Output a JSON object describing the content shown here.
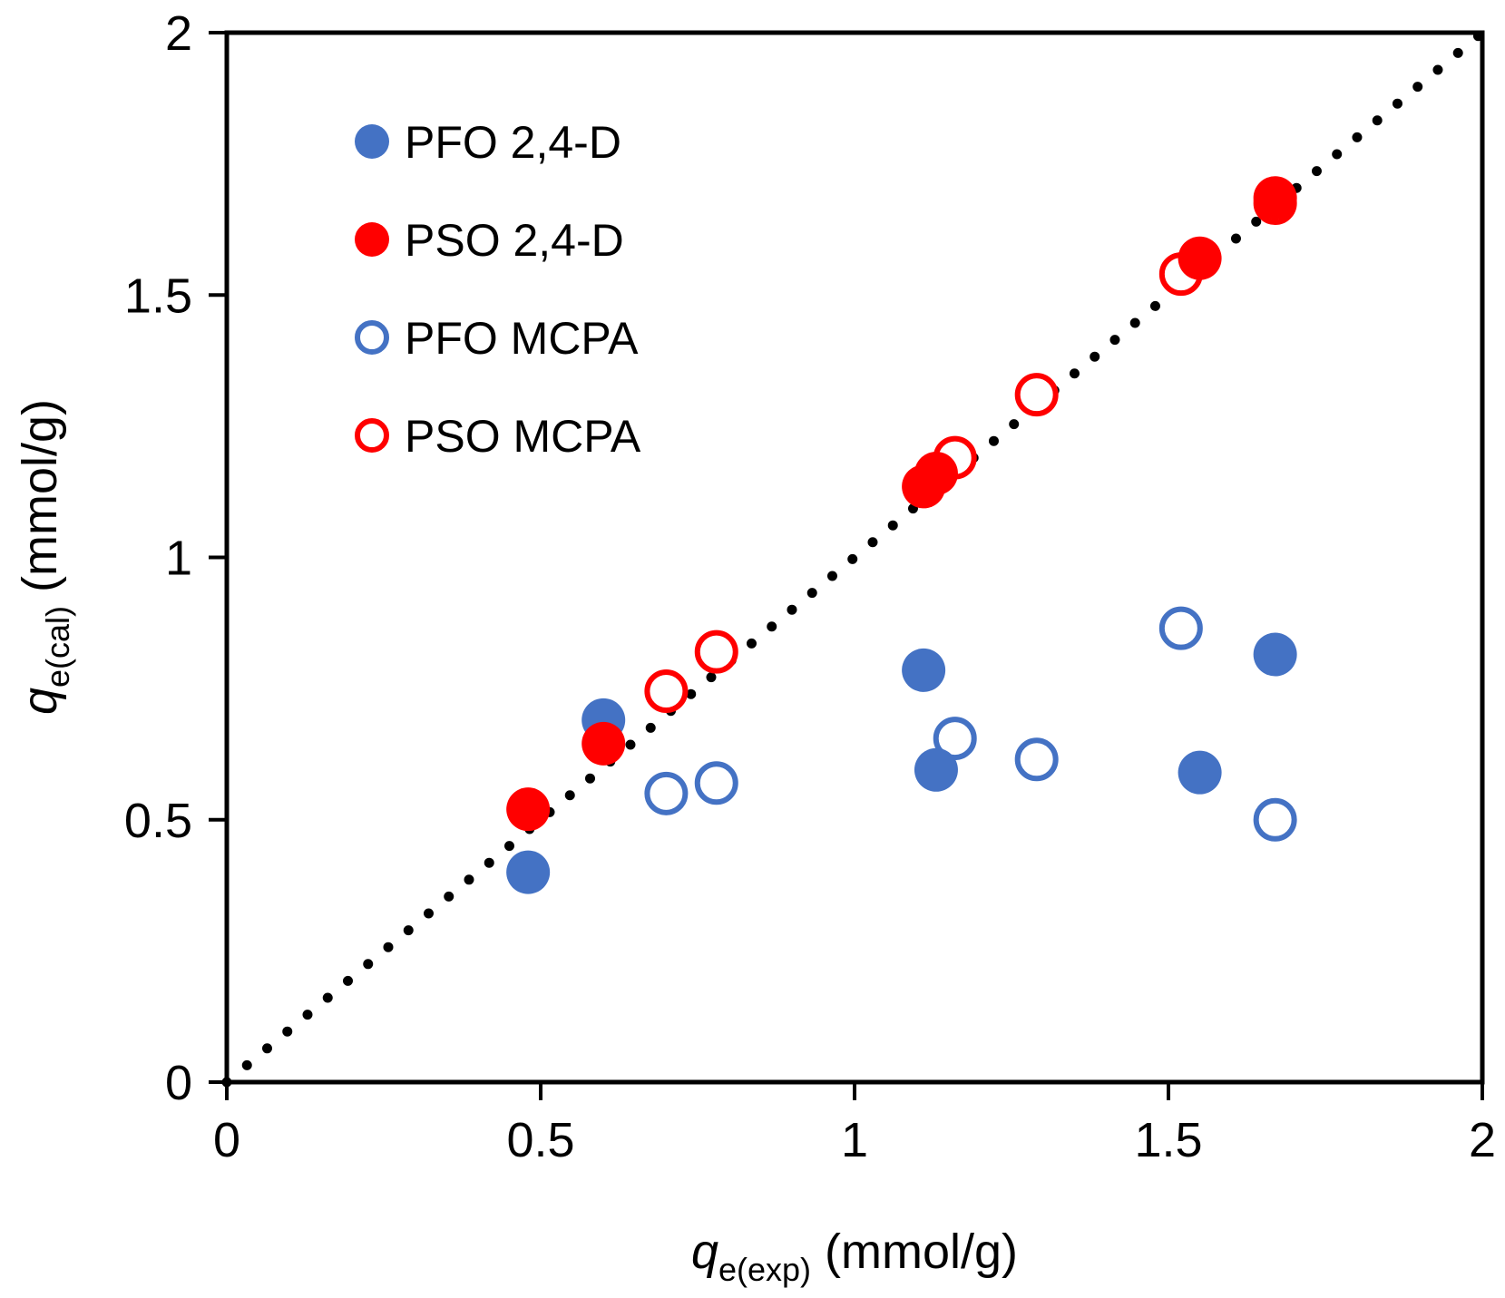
{
  "chart_data": {
    "type": "scatter",
    "xlabel": {
      "main": "q",
      "sub": "e(exp)",
      "unit": " (mmol/g)"
    },
    "ylabel": {
      "main": "q",
      "sub": "e(cal)",
      "unit": " (mmol/g)"
    },
    "xlim": [
      0,
      2
    ],
    "ylim": [
      0,
      2
    ],
    "xticks": [
      0,
      0.5,
      1,
      1.5,
      2
    ],
    "yticks": [
      0,
      0.5,
      1,
      1.5,
      2
    ],
    "xtick_labels": [
      "0",
      "0.5",
      "1",
      "1.5",
      "2"
    ],
    "ytick_labels": [
      "0",
      "0.5",
      "1",
      "1.5",
      "2"
    ],
    "grid": false,
    "legend_position": "top-left",
    "reference_line": {
      "name": "y = x",
      "style": "dotted",
      "color": "#000000",
      "x": [
        0,
        2
      ],
      "y": [
        0,
        2
      ]
    },
    "series": [
      {
        "name": "PFO 2,4-D",
        "marker": "filled-circle",
        "color": "#4472C4",
        "x": [
          0.48,
          0.6,
          1.11,
          1.13,
          1.55,
          1.67
        ],
        "y": [
          0.4,
          0.69,
          0.785,
          0.595,
          0.59,
          0.815
        ]
      },
      {
        "name": "PSO 2,4-D",
        "marker": "filled-circle",
        "color": "#FF0000",
        "x": [
          0.48,
          0.6,
          1.11,
          1.13,
          1.55,
          1.67
        ],
        "y": [
          0.52,
          0.645,
          1.135,
          1.16,
          1.57,
          1.685
        ]
      },
      {
        "name": "PFO MCPA",
        "marker": "open-circle",
        "color": "#4472C4",
        "x": [
          0.7,
          0.78,
          1.16,
          1.29,
          1.52,
          1.67
        ],
        "y": [
          0.55,
          0.57,
          0.655,
          0.615,
          0.865,
          0.5
        ]
      },
      {
        "name": "PSO MCPA",
        "marker": "open-circle",
        "color": "#FF0000",
        "x": [
          0.7,
          0.78,
          1.16,
          1.29,
          1.52,
          1.67
        ],
        "y": [
          0.745,
          0.82,
          1.19,
          1.31,
          1.54,
          1.675
        ]
      }
    ]
  }
}
